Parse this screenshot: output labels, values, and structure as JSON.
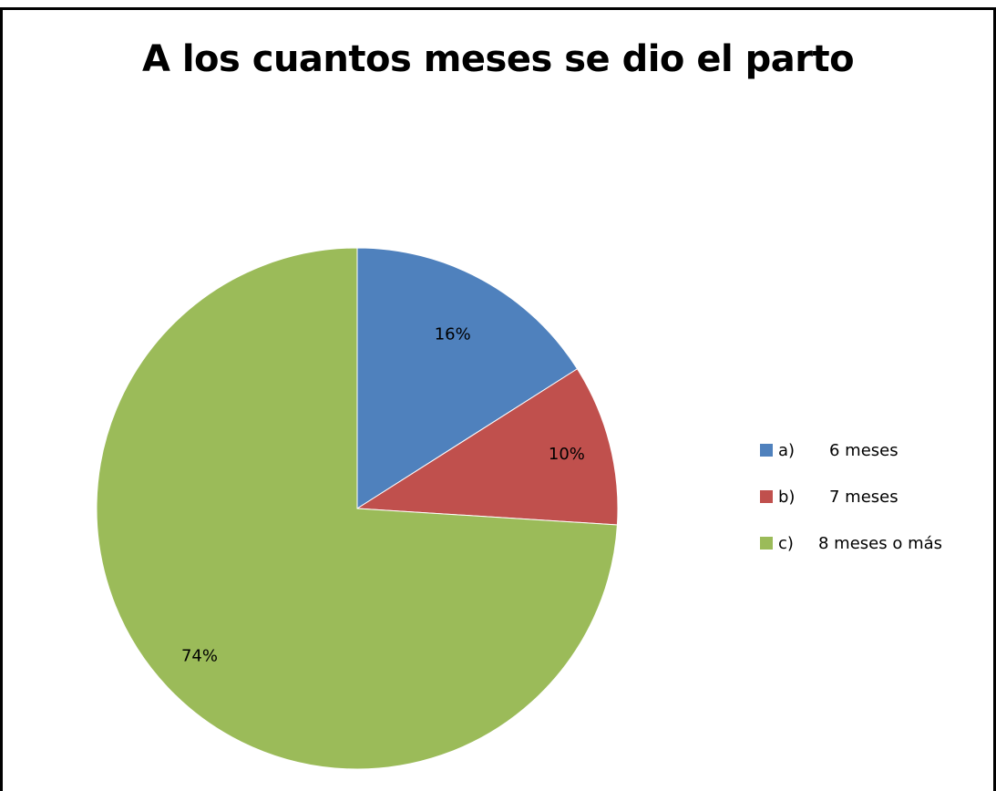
{
  "chart_data": {
    "type": "pie",
    "title": "A los cuantos meses se dio el parto",
    "start_angle": "top (12 o'clock), clockwise",
    "legend_position": "right",
    "slices": [
      {
        "key": "a)",
        "label": "6 meses",
        "value": 16,
        "display": "16%",
        "color": "#4F81BD"
      },
      {
        "key": "b)",
        "label": "7 meses",
        "value": 10,
        "display": "10%",
        "color": "#C0504D"
      },
      {
        "key": "c)",
        "label": "8 meses o más",
        "value": 74,
        "display": "74%",
        "color": "#9BBB59"
      }
    ]
  }
}
